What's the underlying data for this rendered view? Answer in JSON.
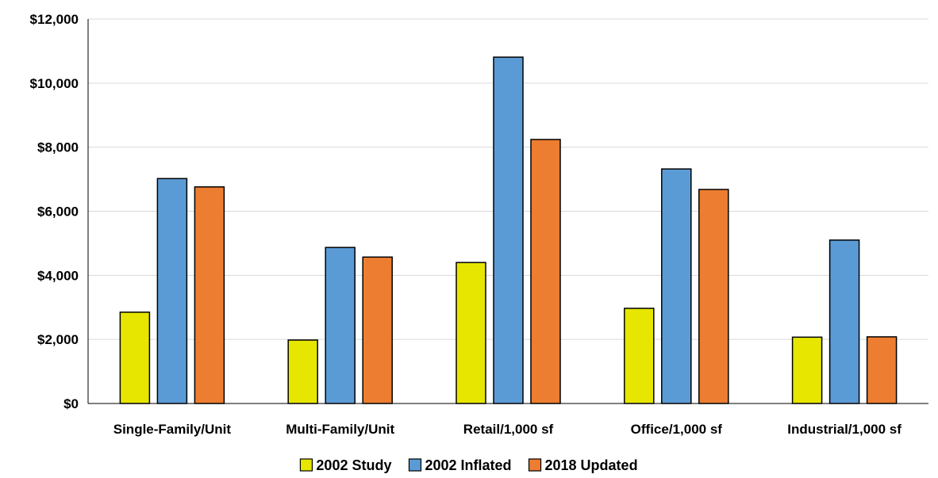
{
  "chart_data": {
    "type": "bar",
    "title": "",
    "xlabel": "",
    "ylabel": "",
    "categories": [
      "Single-Family/Unit",
      "Multi-Family/Unit",
      "Retail/1,000 sf",
      "Office/1,000 sf",
      "Industrial/1,000 sf"
    ],
    "series": [
      {
        "name": "2002 Study",
        "color": "#e6e600",
        "values": [
          2850,
          1980,
          4400,
          2970,
          2070
        ]
      },
      {
        "name": "2002 Inflated",
        "color": "#5b9bd5",
        "values": [
          7020,
          4870,
          10810,
          7320,
          5100
        ]
      },
      {
        "name": "2018 Updated",
        "color": "#ed7d31",
        "values": [
          6760,
          4570,
          8240,
          6680,
          2080
        ]
      }
    ],
    "ylim": [
      0,
      12000
    ],
    "yticks": [
      0,
      2000,
      4000,
      6000,
      8000,
      10000,
      12000
    ],
    "ytick_labels": [
      "$0",
      "$2,000",
      "$4,000",
      "$6,000",
      "$8,000",
      "$10,000",
      "$12,000"
    ],
    "grid": true,
    "legend_position": "bottom"
  }
}
